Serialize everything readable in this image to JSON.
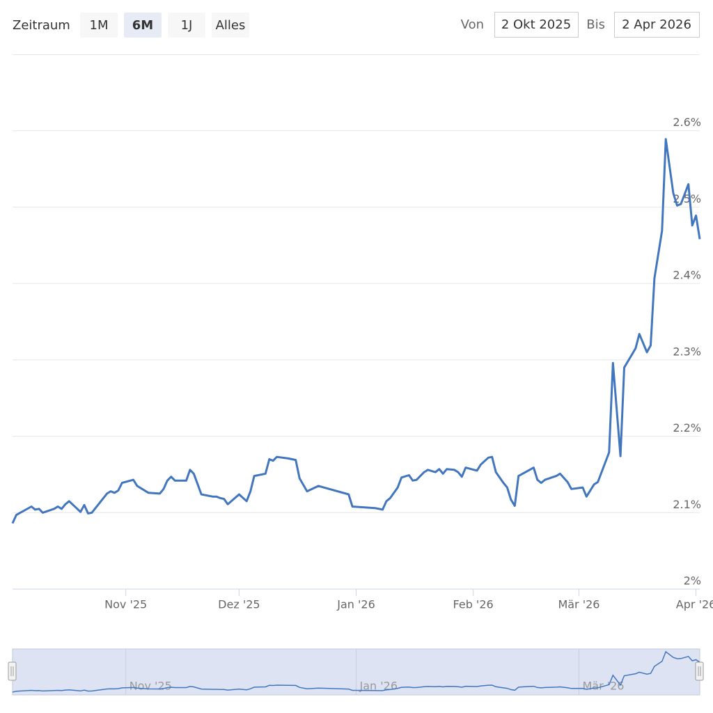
{
  "chart_data": {
    "type": "line",
    "range_selector": {
      "label": "Zeitraum",
      "buttons": [
        "1M",
        "6M",
        "1J",
        "Alles"
      ],
      "selected": 1,
      "from_label": "Von",
      "from": "2 Okt 2025",
      "to_label": "Bis",
      "to": "2 Apr 2026"
    },
    "color": "#4176bf",
    "x": [
      "2025-10-02",
      "2025-10-03",
      "2025-10-07",
      "2025-10-08",
      "2025-10-09",
      "2025-10-10",
      "2025-10-13",
      "2025-10-14",
      "2025-10-15",
      "2025-10-16",
      "2025-10-17",
      "2025-10-20",
      "2025-10-21",
      "2025-10-22",
      "2025-10-23",
      "2025-10-27",
      "2025-10-28",
      "2025-10-29",
      "2025-10-30",
      "2025-10-31",
      "2025-11-03",
      "2025-11-04",
      "2025-11-05",
      "2025-11-07",
      "2025-11-10",
      "2025-11-11",
      "2025-11-12",
      "2025-11-13",
      "2025-11-14",
      "2025-11-17",
      "2025-11-18",
      "2025-11-19",
      "2025-11-21",
      "2025-11-24",
      "2025-11-25",
      "2025-11-26",
      "2025-11-27",
      "2025-11-28",
      "2025-12-01",
      "2025-12-03",
      "2025-12-04",
      "2025-12-05",
      "2025-12-08",
      "2025-12-09",
      "2025-12-10",
      "2025-12-11",
      "2025-12-14",
      "2025-12-16",
      "2025-12-17",
      "2025-12-19",
      "2025-12-22",
      "2025-12-30",
      "2025-12-31",
      "2026-01-03",
      "2026-01-06",
      "2026-01-08",
      "2026-01-09",
      "2026-01-10",
      "2026-01-12",
      "2026-01-13",
      "2026-01-15",
      "2026-01-16",
      "2026-01-17",
      "2026-01-19",
      "2026-01-20",
      "2026-01-22",
      "2026-01-23",
      "2026-01-24",
      "2026-01-25",
      "2026-01-27",
      "2026-01-28",
      "2026-01-29",
      "2026-01-30",
      "2026-02-02",
      "2026-02-03",
      "2026-02-05",
      "2026-02-06",
      "2026-02-07",
      "2026-02-09",
      "2026-02-10",
      "2026-02-11",
      "2026-02-12",
      "2026-02-13",
      "2026-02-17",
      "2026-02-18",
      "2026-02-19",
      "2026-02-20",
      "2026-02-23",
      "2026-02-24",
      "2026-02-26",
      "2026-02-27",
      "2026-03-02",
      "2026-03-03",
      "2026-03-05",
      "2026-03-06",
      "2026-03-09",
      "2026-03-10",
      "2026-03-12",
      "2026-03-13",
      "2026-03-16",
      "2026-03-17",
      "2026-03-19",
      "2026-03-20",
      "2026-03-21",
      "2026-03-23",
      "2026-03-24",
      "2026-03-26",
      "2026-03-27",
      "2026-03-28",
      "2026-03-30",
      "2026-03-31",
      "2026-04-01",
      "2026-04-02"
    ],
    "values": [
      2.086,
      2.097,
      2.108,
      2.104,
      2.105,
      2.1,
      2.105,
      2.108,
      2.105,
      2.111,
      2.115,
      2.101,
      2.11,
      2.099,
      2.1,
      2.125,
      2.128,
      2.126,
      2.129,
      2.139,
      2.143,
      2.135,
      2.132,
      2.126,
      2.125,
      2.131,
      2.142,
      2.147,
      2.142,
      2.142,
      2.156,
      2.151,
      2.124,
      2.121,
      2.121,
      2.119,
      2.118,
      2.111,
      2.124,
      2.115,
      2.128,
      2.148,
      2.151,
      2.17,
      2.168,
      2.173,
      2.171,
      2.169,
      2.145,
      2.128,
      2.135,
      2.124,
      2.108,
      2.107,
      2.106,
      2.104,
      2.115,
      2.119,
      2.133,
      2.146,
      2.149,
      2.142,
      2.143,
      2.153,
      2.156,
      2.153,
      2.157,
      2.151,
      2.157,
      2.156,
      2.153,
      2.147,
      2.159,
      2.155,
      2.163,
      2.172,
      2.173,
      2.153,
      2.139,
      2.133,
      2.117,
      2.109,
      2.148,
      2.159,
      2.143,
      2.139,
      2.143,
      2.148,
      2.151,
      2.14,
      2.131,
      2.133,
      2.121,
      2.137,
      2.14,
      2.179,
      2.296,
      2.174,
      2.29,
      2.315,
      2.334,
      2.31,
      2.319,
      2.407,
      2.469,
      2.589,
      2.518,
      2.502,
      2.504,
      2.53,
      2.476,
      2.489,
      2.458
    ],
    "xlim": [
      "2025-10-02",
      "2026-04-02"
    ],
    "xticks": [
      {
        "value": "2025-11-01",
        "label": "Nov '25"
      },
      {
        "value": "2025-12-01",
        "label": "Dez '25"
      },
      {
        "value": "2026-01-01",
        "label": "Jan '26"
      },
      {
        "value": "2026-02-01",
        "label": "Feb '26"
      },
      {
        "value": "2026-03-01",
        "label": "Mär '26"
      },
      {
        "value": "2026-04-01",
        "label": "Apr '26"
      }
    ],
    "ylim": [
      2,
      2.7
    ],
    "yticks": [
      {
        "value": 2,
        "label": "2%"
      },
      {
        "value": 2.1,
        "label": "2.1%"
      },
      {
        "value": 2.2,
        "label": "2.2%"
      },
      {
        "value": 2.3,
        "label": "2.3%"
      },
      {
        "value": 2.4,
        "label": "2.4%"
      },
      {
        "value": 2.5,
        "label": "2.5%"
      },
      {
        "value": 2.6,
        "label": "2.6%"
      }
    ],
    "grid": true,
    "navigator": true
  }
}
